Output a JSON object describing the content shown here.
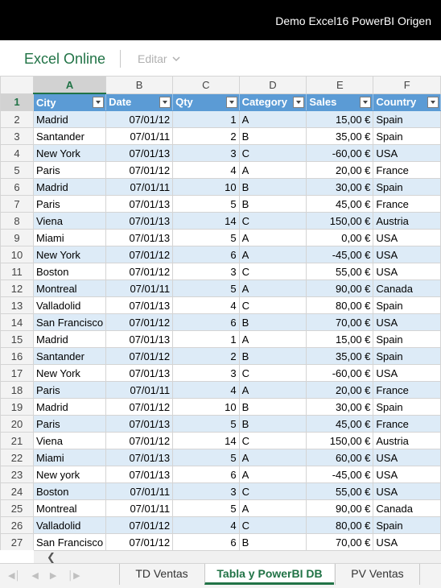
{
  "window": {
    "title": "Demo Excel16 PowerBI Origen"
  },
  "ribbon": {
    "app_name": "Excel Online",
    "edit_label": "Editar"
  },
  "columns": [
    "A",
    "B",
    "C",
    "D",
    "E",
    "F"
  ],
  "selected_column": "A",
  "table": {
    "headers": [
      "City",
      "Date",
      "Qty",
      "Category",
      "Sales",
      "Country"
    ],
    "rows": [
      [
        "Madrid",
        "07/01/12",
        "1",
        "A",
        "15,00 €",
        "Spain"
      ],
      [
        "Santander",
        "07/01/11",
        "2",
        "B",
        "35,00 €",
        "Spain"
      ],
      [
        "New York",
        "07/01/13",
        "3",
        "C",
        "-60,00 €",
        "USA"
      ],
      [
        "Paris",
        "07/01/12",
        "4",
        "A",
        "20,00 €",
        "France"
      ],
      [
        "Madrid",
        "07/01/11",
        "10",
        "B",
        "30,00 €",
        "Spain"
      ],
      [
        "Paris",
        "07/01/13",
        "5",
        "B",
        "45,00 €",
        "France"
      ],
      [
        "Viena",
        "07/01/13",
        "14",
        "C",
        "150,00 €",
        "Austria"
      ],
      [
        "Miami",
        "07/01/13",
        "5",
        "A",
        "0,00 €",
        "USA"
      ],
      [
        "New York",
        "07/01/12",
        "6",
        "A",
        "-45,00 €",
        "USA"
      ],
      [
        "Boston",
        "07/01/12",
        "3",
        "C",
        "55,00 €",
        "USA"
      ],
      [
        "Montreal",
        "07/01/11",
        "5",
        "A",
        "90,00 €",
        "Canada"
      ],
      [
        "Valladolid",
        "07/01/13",
        "4",
        "C",
        "80,00 €",
        "Spain"
      ],
      [
        "San Francisco",
        "07/01/12",
        "6",
        "B",
        "70,00 €",
        "USA"
      ],
      [
        "Madrid",
        "07/01/13",
        "1",
        "A",
        "15,00 €",
        "Spain"
      ],
      [
        "Santander",
        "07/01/12",
        "2",
        "B",
        "35,00 €",
        "Spain"
      ],
      [
        "New York",
        "07/01/13",
        "3",
        "C",
        "-60,00 €",
        "USA"
      ],
      [
        "Paris",
        "07/01/11",
        "4",
        "A",
        "20,00 €",
        "France"
      ],
      [
        "Madrid",
        "07/01/12",
        "10",
        "B",
        "30,00 €",
        "Spain"
      ],
      [
        "Paris",
        "07/01/13",
        "5",
        "B",
        "45,00 €",
        "France"
      ],
      [
        "Viena",
        "07/01/12",
        "14",
        "C",
        "150,00 €",
        "Austria"
      ],
      [
        "Miami",
        "07/01/13",
        "5",
        "A",
        "60,00 €",
        "USA"
      ],
      [
        "New york",
        "07/01/13",
        "6",
        "A",
        "-45,00 €",
        "USA"
      ],
      [
        "Boston",
        "07/01/11",
        "3",
        "C",
        "55,00 €",
        "USA"
      ],
      [
        "Montreal",
        "07/01/11",
        "5",
        "A",
        "90,00 €",
        "Canada"
      ],
      [
        "Valladolid",
        "07/01/12",
        "4",
        "C",
        "80,00 €",
        "Spain"
      ],
      [
        "San Francisco",
        "07/01/12",
        "6",
        "B",
        "70,00 €",
        "USA"
      ]
    ]
  },
  "sheet_tabs": [
    "TD Ventas",
    "Tabla y PowerBI DB",
    "PV Ventas"
  ],
  "active_tab_index": 1,
  "colors": {
    "brand_green": "#217346",
    "table_header_blue": "#5b9bd5",
    "band_blue": "#ddebf7"
  }
}
